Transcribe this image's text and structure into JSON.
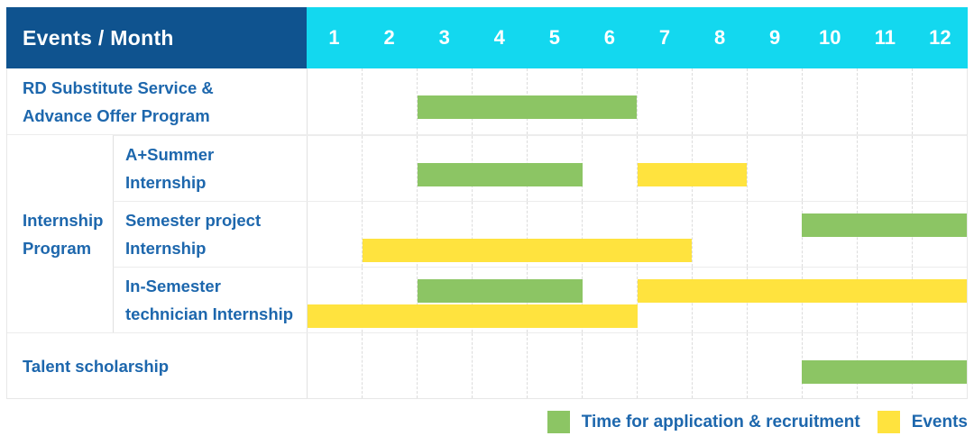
{
  "header": {
    "title": "Events / Month"
  },
  "colors": {
    "header_bg": "#0F538F",
    "month_header_bg": "#13D8EF",
    "header_text": "#FFFFFF",
    "label_text": "#1D67AD",
    "application_bar": "#8CC564",
    "event_bar": "#FFE33E",
    "row_separator": "#ECECEC",
    "month_gridline": "#DCDCDC"
  },
  "chart_data": {
    "type": "gantt",
    "title": "Events / Month",
    "x_ticks": [
      "1",
      "2",
      "3",
      "4",
      "5",
      "6",
      "7",
      "8",
      "9",
      "10",
      "11",
      "12"
    ],
    "x_range": [
      1,
      12
    ],
    "grid": "vertical-dashed",
    "groups": {
      "internship": {
        "label_lines": [
          "Internship",
          "Program"
        ]
      }
    },
    "rows": [
      {
        "id": "rd-substitute-advance-offer",
        "group": null,
        "label_lines": [
          "RD Substitute Service &",
          "Advance Offer Program"
        ],
        "bars": [
          {
            "kind": "application",
            "start_month": 3,
            "end_month": 6,
            "lane": "single"
          }
        ]
      },
      {
        "id": "a-plus-summer-internship",
        "group": "internship",
        "label_lines": [
          "A+Summer",
          "Internship"
        ],
        "bars": [
          {
            "kind": "application",
            "start_month": 3,
            "end_month": 5,
            "lane": "single"
          },
          {
            "kind": "event",
            "start_month": 7,
            "end_month": 8,
            "lane": "single"
          }
        ]
      },
      {
        "id": "semester-project-internship",
        "group": "internship",
        "label_lines": [
          "Semester project",
          "Internship"
        ],
        "bars": [
          {
            "kind": "application",
            "start_month": 10,
            "end_month": 12,
            "lane": "top"
          },
          {
            "kind": "event",
            "start_month": 2,
            "end_month": 7,
            "lane": "bottom"
          }
        ]
      },
      {
        "id": "in-semester-technician-internship",
        "group": "internship",
        "label_lines": [
          "In-Semester",
          "technician Internship"
        ],
        "bars": [
          {
            "kind": "application",
            "start_month": 3,
            "end_month": 5,
            "lane": "top"
          },
          {
            "kind": "event",
            "start_month": 7,
            "end_month": 12,
            "lane": "top"
          },
          {
            "kind": "event",
            "start_month": 1,
            "end_month": 6,
            "lane": "bottom"
          }
        ]
      },
      {
        "id": "talent-scholarship",
        "group": null,
        "label_lines": [
          "Talent scholarship"
        ],
        "bars": [
          {
            "kind": "application",
            "start_month": 10,
            "end_month": 12,
            "lane": "single"
          }
        ]
      }
    ],
    "legend": [
      {
        "kind": "application",
        "label": "Time for application & recruitment",
        "color": "#8CC564"
      },
      {
        "kind": "event",
        "label": "Events",
        "color": "#FFE33E"
      }
    ],
    "legend_position": "bottom-right"
  }
}
